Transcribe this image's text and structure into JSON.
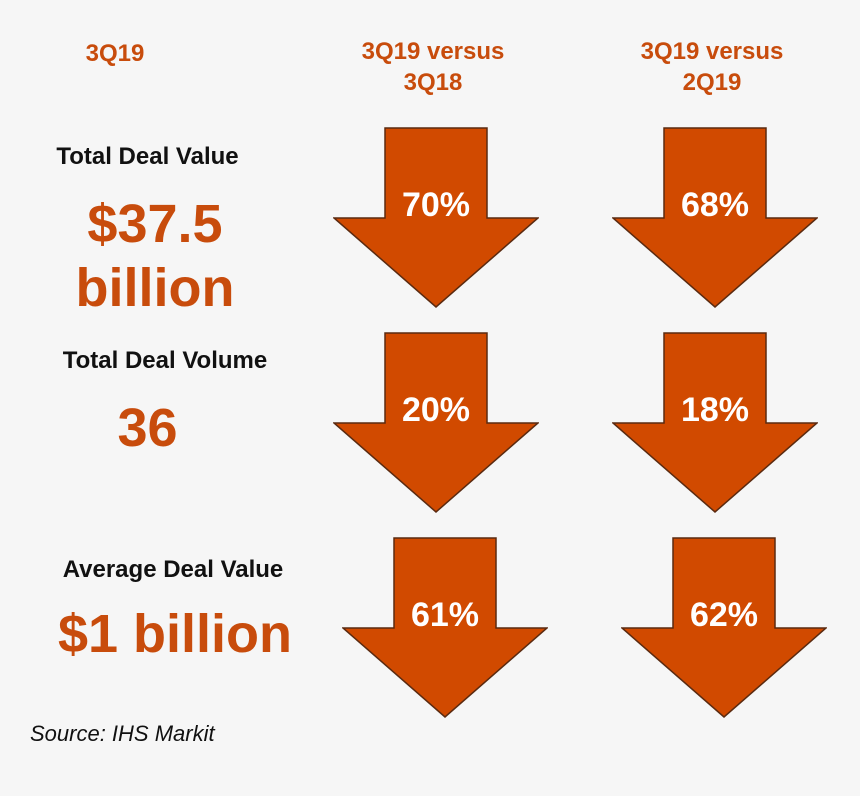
{
  "headers": {
    "period": "3Q19",
    "yoy": [
      "3Q19 versus",
      "3Q18"
    ],
    "qoq": [
      "3Q19 versus",
      "2Q19"
    ]
  },
  "metrics": [
    {
      "label": "Total Deal Value",
      "value_lines": [
        "$37.5",
        "billion"
      ],
      "yoy_change": "70%",
      "qoq_change": "68%"
    },
    {
      "label": "Total Deal Volume",
      "value_lines": [
        "36"
      ],
      "yoy_change": "20%",
      "qoq_change": "18%"
    },
    {
      "label": "Average Deal Value",
      "value_lines": [
        "$1 billion"
      ],
      "yoy_change": "61%",
      "qoq_change": "62%"
    }
  ],
  "source": "Source: IHS Markit",
  "colors": {
    "accent": "#c84c0c",
    "arrow_fill": "#d14a00",
    "arrow_stroke": "#5a2a10",
    "text": "#111111",
    "background": "#f6f6f6"
  },
  "icons": {
    "decline_arrow": "down-arrow-icon"
  },
  "chart_data": {
    "type": "table",
    "title": "",
    "columns": [
      "3Q19",
      "3Q19 versus 3Q18",
      "3Q19 versus 2Q19"
    ],
    "rows": [
      {
        "metric": "Total Deal Value",
        "value": "$37.5 billion",
        "yoy": 70,
        "qoq": 68,
        "direction": "down"
      },
      {
        "metric": "Total Deal Volume",
        "value": "36",
        "yoy": 20,
        "qoq": 18,
        "direction": "down"
      },
      {
        "metric": "Average Deal Value",
        "value": "$1 billion",
        "yoy": 61,
        "qoq": 62,
        "direction": "down"
      }
    ],
    "unit": "%"
  }
}
